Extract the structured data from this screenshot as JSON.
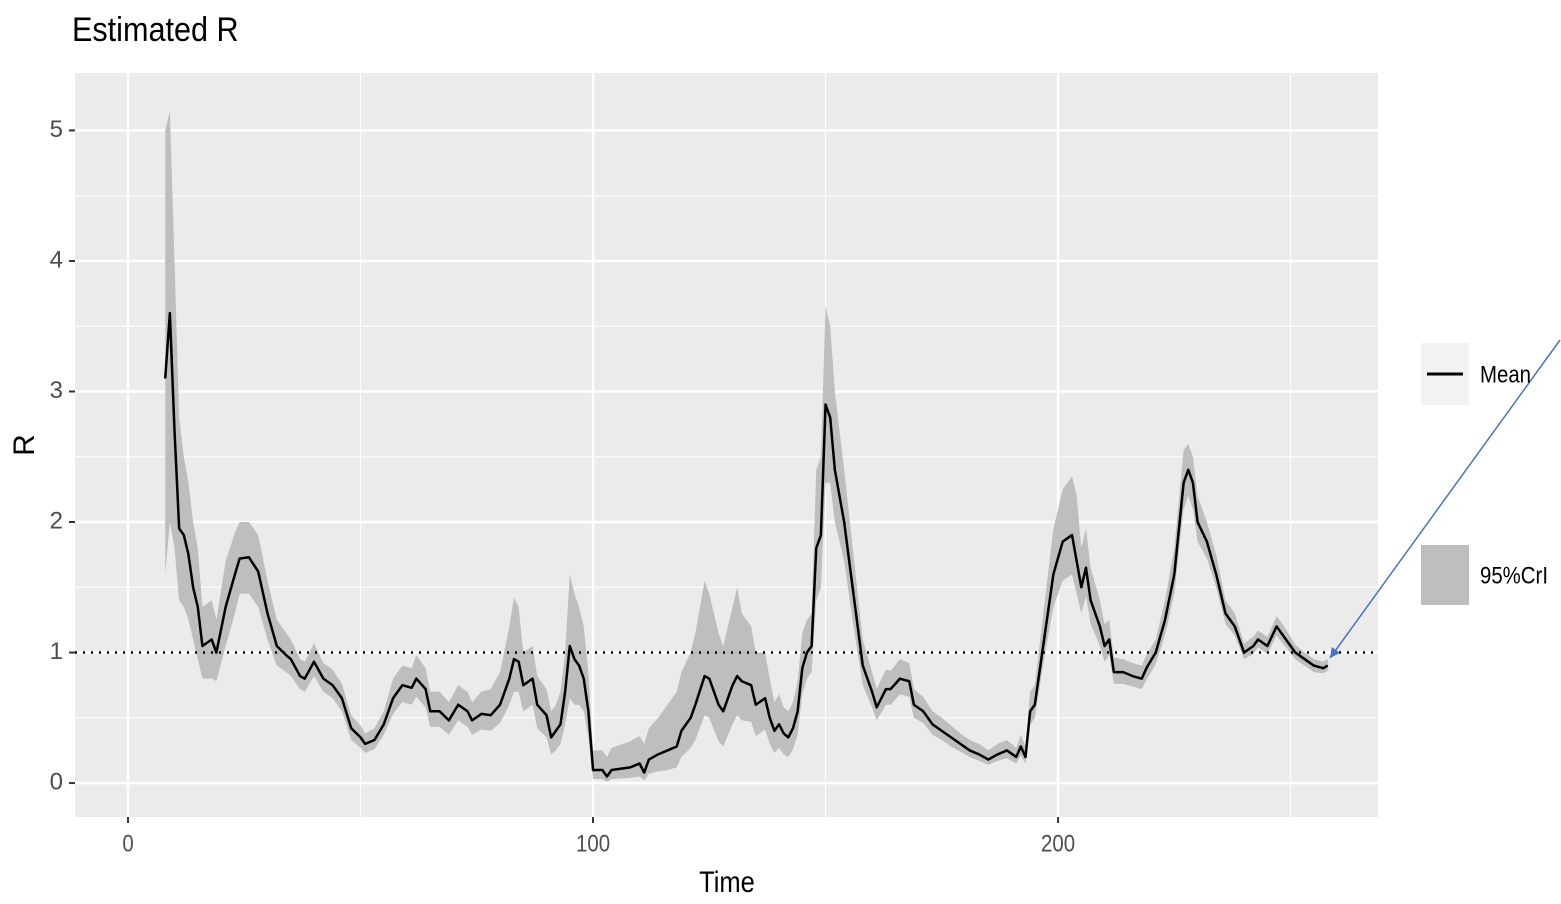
{
  "chart_data": {
    "type": "line",
    "title": "Estimated R",
    "x_label": "Time",
    "y_label": "R",
    "x": [
      8,
      9,
      10,
      11,
      12,
      13,
      14,
      15,
      16,
      18,
      19,
      21,
      23,
      24,
      26,
      28,
      30,
      32,
      34,
      35,
      37,
      38,
      40,
      42,
      44,
      46,
      48,
      50,
      51,
      53,
      55,
      57,
      59,
      61,
      62,
      64,
      65,
      67,
      69,
      71,
      73,
      74,
      76,
      78,
      80,
      82,
      83,
      84,
      85,
      87,
      88,
      90,
      91,
      92,
      93,
      94,
      95,
      96,
      97,
      98,
      99,
      100,
      102,
      103,
      104,
      108,
      110,
      111,
      112,
      114,
      116,
      118,
      119,
      121,
      122,
      124,
      125,
      127,
      128,
      130,
      131,
      132,
      134,
      135,
      137,
      138,
      139,
      140,
      141,
      142,
      143,
      144,
      145,
      146,
      147,
      148,
      149,
      150,
      151,
      152,
      154,
      156,
      158,
      160,
      161,
      163,
      164,
      166,
      168,
      169,
      171,
      173,
      175,
      177,
      179,
      181,
      183,
      185,
      187,
      189,
      191,
      192,
      193,
      194,
      195,
      197,
      199,
      201,
      203,
      204,
      205,
      206,
      207,
      209,
      210,
      211,
      212,
      214,
      216,
      218,
      219,
      221,
      223,
      225,
      227,
      228,
      229,
      230,
      232,
      234,
      236,
      238,
      240,
      242,
      243,
      245,
      247,
      249,
      251,
      253,
      255,
      257,
      258
    ],
    "series": [
      {
        "name": "Mean",
        "color": "#000000",
        "values": [
          3.1,
          3.6,
          2.7,
          1.95,
          1.9,
          1.75,
          1.5,
          1.35,
          1.05,
          1.1,
          1.0,
          1.35,
          1.6,
          1.72,
          1.73,
          1.62,
          1.3,
          1.05,
          0.98,
          0.95,
          0.82,
          0.8,
          0.93,
          0.8,
          0.75,
          0.65,
          0.42,
          0.35,
          0.3,
          0.33,
          0.45,
          0.65,
          0.75,
          0.73,
          0.8,
          0.72,
          0.55,
          0.55,
          0.48,
          0.6,
          0.55,
          0.48,
          0.53,
          0.52,
          0.6,
          0.8,
          0.95,
          0.93,
          0.75,
          0.8,
          0.6,
          0.52,
          0.35,
          0.4,
          0.45,
          0.7,
          1.05,
          0.95,
          0.9,
          0.8,
          0.55,
          0.1,
          0.1,
          0.05,
          0.1,
          0.12,
          0.15,
          0.08,
          0.18,
          0.22,
          0.25,
          0.28,
          0.4,
          0.5,
          0.6,
          0.82,
          0.8,
          0.6,
          0.55,
          0.75,
          0.82,
          0.78,
          0.75,
          0.6,
          0.65,
          0.5,
          0.4,
          0.45,
          0.38,
          0.35,
          0.42,
          0.55,
          0.88,
          1.0,
          1.05,
          1.8,
          1.9,
          2.9,
          2.8,
          2.4,
          2.0,
          1.45,
          0.9,
          0.7,
          0.58,
          0.72,
          0.72,
          0.8,
          0.78,
          0.6,
          0.55,
          0.45,
          0.4,
          0.35,
          0.3,
          0.25,
          0.22,
          0.18,
          0.22,
          0.25,
          0.2,
          0.28,
          0.2,
          0.55,
          0.6,
          1.1,
          1.6,
          1.85,
          1.9,
          1.7,
          1.5,
          1.65,
          1.4,
          1.2,
          1.05,
          1.1,
          0.85,
          0.85,
          0.82,
          0.8,
          0.88,
          1.0,
          1.25,
          1.6,
          2.3,
          2.4,
          2.3,
          2.0,
          1.85,
          1.6,
          1.3,
          1.2,
          1.0,
          1.05,
          1.1,
          1.05,
          1.2,
          1.1,
          1.0,
          0.95,
          0.9,
          0.88,
          0.9
        ]
      }
    ],
    "band": {
      "name": "95%CrI",
      "color": "#bebebe",
      "lower": [
        1.6,
        2.0,
        1.8,
        1.4,
        1.35,
        1.25,
        1.1,
        0.95,
        0.8,
        0.8,
        0.78,
        1.05,
        1.3,
        1.45,
        1.45,
        1.35,
        1.1,
        0.9,
        0.85,
        0.82,
        0.72,
        0.7,
        0.82,
        0.7,
        0.65,
        0.55,
        0.33,
        0.27,
        0.23,
        0.26,
        0.37,
        0.53,
        0.62,
        0.6,
        0.66,
        0.58,
        0.43,
        0.43,
        0.37,
        0.48,
        0.43,
        0.37,
        0.41,
        0.4,
        0.46,
        0.6,
        0.7,
        0.7,
        0.55,
        0.6,
        0.42,
        0.35,
        0.22,
        0.25,
        0.3,
        0.45,
        0.65,
        0.6,
        0.6,
        0.55,
        0.35,
        0.03,
        0.03,
        0.01,
        0.03,
        0.04,
        0.05,
        0.02,
        0.07,
        0.09,
        0.1,
        0.12,
        0.2,
        0.27,
        0.33,
        0.52,
        0.5,
        0.32,
        0.28,
        0.45,
        0.52,
        0.48,
        0.47,
        0.36,
        0.41,
        0.3,
        0.23,
        0.27,
        0.22,
        0.2,
        0.26,
        0.37,
        0.68,
        0.8,
        0.85,
        1.4,
        1.5,
        2.3,
        2.3,
        2.0,
        1.7,
        1.2,
        0.75,
        0.58,
        0.48,
        0.6,
        0.6,
        0.68,
        0.66,
        0.5,
        0.46,
        0.37,
        0.33,
        0.28,
        0.24,
        0.2,
        0.17,
        0.14,
        0.17,
        0.19,
        0.15,
        0.21,
        0.15,
        0.45,
        0.5,
        0.95,
        1.35,
        1.55,
        1.6,
        1.45,
        1.3,
        1.43,
        1.22,
        1.05,
        0.93,
        0.98,
        0.76,
        0.76,
        0.74,
        0.72,
        0.79,
        0.91,
        1.13,
        1.45,
        2.1,
        2.2,
        2.1,
        1.85,
        1.72,
        1.5,
        1.22,
        1.13,
        0.95,
        0.99,
        1.04,
        0.99,
        1.13,
        1.04,
        0.95,
        0.9,
        0.85,
        0.84,
        0.86
      ],
      "upper": [
        5.0,
        5.15,
        4.0,
        2.8,
        2.5,
        2.3,
        2.0,
        1.8,
        1.35,
        1.4,
        1.25,
        1.7,
        1.92,
        2.0,
        2.0,
        1.9,
        1.55,
        1.25,
        1.15,
        1.1,
        0.95,
        0.93,
        1.07,
        0.92,
        0.87,
        0.76,
        0.52,
        0.44,
        0.38,
        0.42,
        0.55,
        0.8,
        0.9,
        0.88,
        0.98,
        0.88,
        0.7,
        0.7,
        0.62,
        0.75,
        0.7,
        0.62,
        0.7,
        0.72,
        0.85,
        1.2,
        1.42,
        1.35,
        1.0,
        1.05,
        0.82,
        0.72,
        0.55,
        0.6,
        0.7,
        1.0,
        1.6,
        1.45,
        1.35,
        1.2,
        0.85,
        0.25,
        0.25,
        0.2,
        0.27,
        0.32,
        0.36,
        0.3,
        0.42,
        0.5,
        0.6,
        0.7,
        0.85,
        1.0,
        1.15,
        1.55,
        1.45,
        1.15,
        1.05,
        1.35,
        1.5,
        1.3,
        1.2,
        1.0,
        1.0,
        0.8,
        0.62,
        0.68,
        0.58,
        0.55,
        0.62,
        0.78,
        1.15,
        1.25,
        1.3,
        2.4,
        2.5,
        3.65,
        3.5,
        3.0,
        2.4,
        1.75,
        1.1,
        0.85,
        0.72,
        0.87,
        0.86,
        0.95,
        0.92,
        0.72,
        0.66,
        0.55,
        0.5,
        0.44,
        0.38,
        0.33,
        0.3,
        0.25,
        0.3,
        0.33,
        0.27,
        0.37,
        0.28,
        0.7,
        0.75,
        1.35,
        1.95,
        2.25,
        2.35,
        2.2,
        1.8,
        1.95,
        1.65,
        1.4,
        1.22,
        1.25,
        0.96,
        0.95,
        0.92,
        0.9,
        0.98,
        1.1,
        1.4,
        1.8,
        2.55,
        2.6,
        2.5,
        2.2,
        2.0,
        1.75,
        1.4,
        1.3,
        1.07,
        1.12,
        1.17,
        1.12,
        1.28,
        1.18,
        1.06,
        1.0,
        0.95,
        0.93,
        0.95
      ]
    },
    "hline": 1,
    "xlim": [
      -11.4,
      268.8
    ],
    "ylim": [
      -0.26,
      5.44
    ],
    "xticks": [
      0,
      100,
      200
    ],
    "yticks": [
      0,
      1,
      2,
      3,
      4,
      5
    ],
    "x_minor_ticks": [
      50,
      150,
      250
    ],
    "y_minor_ticks": [
      0.5,
      1.5,
      2.5,
      3.5,
      4.5
    ],
    "grid": true
  }
}
